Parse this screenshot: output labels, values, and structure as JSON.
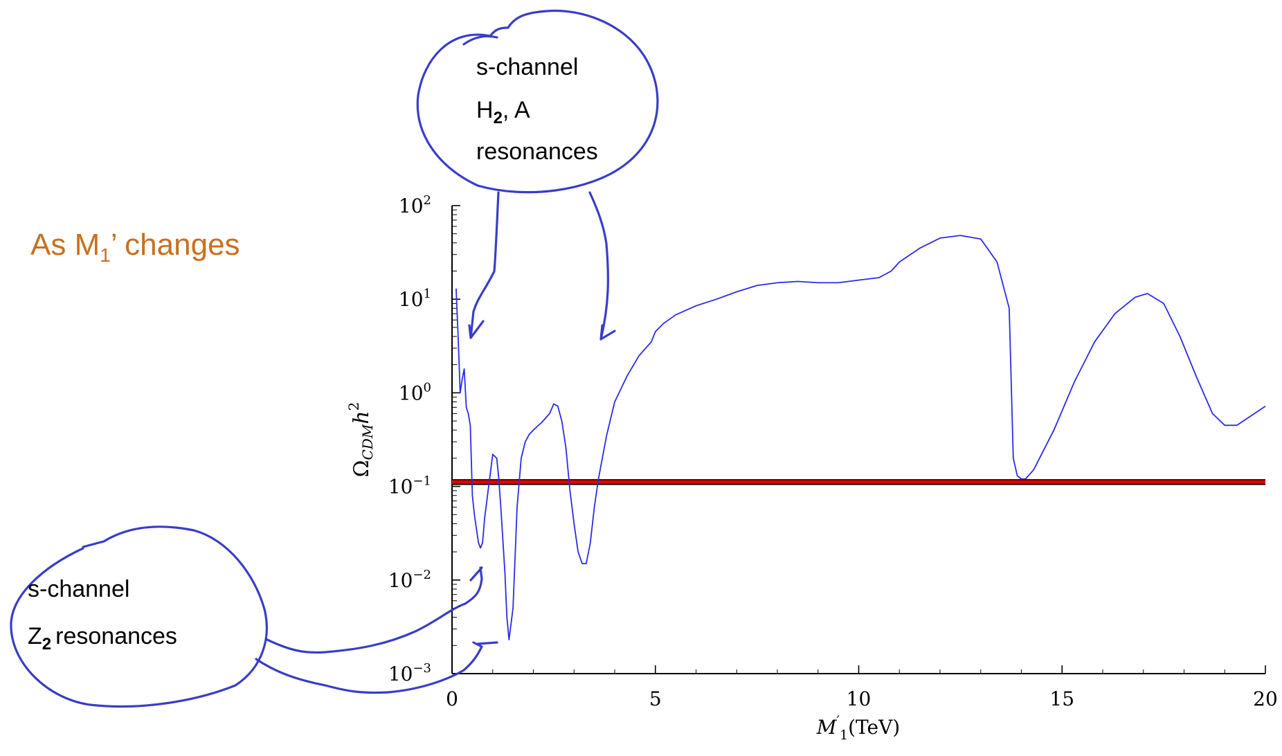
{
  "slide": {
    "heading_prefix": "As M",
    "heading_sub": "1",
    "heading_suffix": "’ changes",
    "heading_color": "#C8701E"
  },
  "annotations": {
    "ink_color": "#3A3CC8",
    "top_bubble": {
      "line1": "s-channel",
      "line2_main": "H",
      "line2_sub": "2",
      "line2_rest": ", A",
      "line3": "resonances"
    },
    "bottom_bubble": {
      "line1": "s-channel",
      "line2_main": "Z",
      "line2_sub": "2",
      "line2_rest": "resonances"
    }
  },
  "chart_data": {
    "type": "line",
    "xlabel_main": "M",
    "xlabel_sub": "1",
    "xlabel_rest": "(TeV)",
    "ylabel_main": "Ω",
    "ylabel_sub": "CDM",
    "ylabel_rest": "h",
    "ylabel_sup": "2",
    "x_range": [
      0,
      20
    ],
    "y_range": [
      0.001,
      100
    ],
    "y_scale": "log",
    "x_ticks": [
      {
        "value": 0,
        "label": "0"
      },
      {
        "value": 5,
        "label": "5"
      },
      {
        "value": 10,
        "label": "10"
      },
      {
        "value": 15,
        "label": "15"
      },
      {
        "value": 20,
        "label": "20"
      }
    ],
    "y_ticks": [
      {
        "exp": 2,
        "label": "10"
      },
      {
        "exp": 1,
        "label": "10"
      },
      {
        "exp": 0,
        "label": "10"
      },
      {
        "exp": -1,
        "label": "10"
      },
      {
        "exp": -2,
        "label": "10"
      },
      {
        "exp": -3,
        "label": "10"
      }
    ],
    "reference_band": {
      "y": 0.11,
      "y_low": 0.105,
      "y_high": 0.118,
      "color": "#E00000"
    },
    "series": [
      {
        "color": "#2A2AE8",
        "x": [
          0.1,
          0.15,
          0.2,
          0.25,
          0.3,
          0.35,
          0.4,
          0.45,
          0.5,
          0.55,
          0.6,
          0.65,
          0.7,
          0.75,
          0.8,
          0.9,
          1.0,
          1.1,
          1.15,
          1.2,
          1.3,
          1.35,
          1.4,
          1.5,
          1.6,
          1.7,
          1.8,
          1.9,
          2.0,
          2.1,
          2.2,
          2.4,
          2.5,
          2.6,
          2.7,
          2.8,
          2.9,
          3.0,
          3.1,
          3.2,
          3.3,
          3.4,
          3.5,
          3.6,
          3.8,
          4.0,
          4.3,
          4.6,
          4.9,
          5.0,
          5.2,
          5.5,
          6.0,
          6.5,
          7.0,
          7.5,
          8.0,
          8.5,
          9.0,
          9.5,
          10.0,
          10.5,
          10.8,
          11.0,
          11.5,
          12.0,
          12.5,
          13.0,
          13.4,
          13.7,
          13.8,
          13.9,
          14.0,
          14.1,
          14.3,
          14.8,
          15.3,
          15.8,
          16.3,
          16.8,
          17.1,
          17.5,
          17.9,
          18.3,
          18.7,
          19.0,
          19.3,
          19.6,
          20.0
        ],
        "y": [
          13,
          4,
          1.0,
          1.4,
          1.8,
          0.7,
          0.6,
          0.45,
          0.08,
          0.05,
          0.035,
          0.025,
          0.022,
          0.025,
          0.045,
          0.1,
          0.22,
          0.2,
          0.12,
          0.06,
          0.012,
          0.004,
          0.0023,
          0.005,
          0.06,
          0.2,
          0.3,
          0.36,
          0.4,
          0.44,
          0.48,
          0.6,
          0.76,
          0.72,
          0.5,
          0.26,
          0.09,
          0.04,
          0.02,
          0.015,
          0.015,
          0.025,
          0.06,
          0.12,
          0.35,
          0.8,
          1.5,
          2.5,
          3.5,
          4.5,
          5.5,
          6.8,
          8.5,
          10,
          12,
          14,
          15,
          15.5,
          15,
          15,
          16,
          17,
          20,
          25,
          35,
          45,
          48,
          44,
          25,
          8,
          0.2,
          0.13,
          0.12,
          0.12,
          0.15,
          0.4,
          1.3,
          3.5,
          7,
          10.5,
          11.5,
          9,
          4,
          1.5,
          0.6,
          0.45,
          0.45,
          0.55,
          0.72
        ]
      }
    ]
  }
}
